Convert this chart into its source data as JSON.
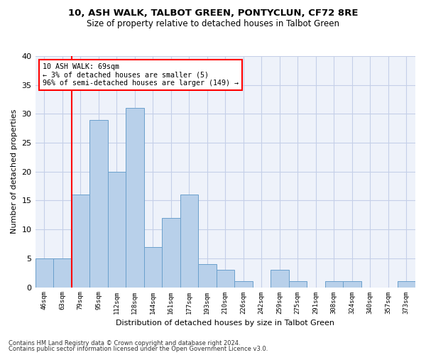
{
  "title1": "10, ASH WALK, TALBOT GREEN, PONTYCLUN, CF72 8RE",
  "title2": "Size of property relative to detached houses in Talbot Green",
  "xlabel": "Distribution of detached houses by size in Talbot Green",
  "ylabel": "Number of detached properties",
  "categories": [
    "46sqm",
    "63sqm",
    "79sqm",
    "95sqm",
    "112sqm",
    "128sqm",
    "144sqm",
    "161sqm",
    "177sqm",
    "193sqm",
    "210sqm",
    "226sqm",
    "242sqm",
    "259sqm",
    "275sqm",
    "291sqm",
    "308sqm",
    "324sqm",
    "340sqm",
    "357sqm",
    "373sqm"
  ],
  "values": [
    5,
    5,
    16,
    29,
    20,
    31,
    7,
    12,
    16,
    4,
    3,
    1,
    0,
    3,
    1,
    0,
    1,
    1,
    0,
    0,
    1
  ],
  "bar_color": "#b8d0ea",
  "bar_edge_color": "#6aa0cc",
  "annotation_line1": "10 ASH WALK: 69sqm",
  "annotation_line2": "← 3% of detached houses are smaller (5)",
  "annotation_line3": "96% of semi-detached houses are larger (149) →",
  "annotation_box_color": "white",
  "annotation_box_edge_color": "red",
  "vline_color": "red",
  "vline_x": 1.5,
  "ylim": [
    0,
    40
  ],
  "yticks": [
    0,
    5,
    10,
    15,
    20,
    25,
    30,
    35,
    40
  ],
  "footer1": "Contains HM Land Registry data © Crown copyright and database right 2024.",
  "footer2": "Contains public sector information licensed under the Open Government Licence v3.0.",
  "bg_color": "#eef2fa",
  "grid_color": "#c5cfe8"
}
